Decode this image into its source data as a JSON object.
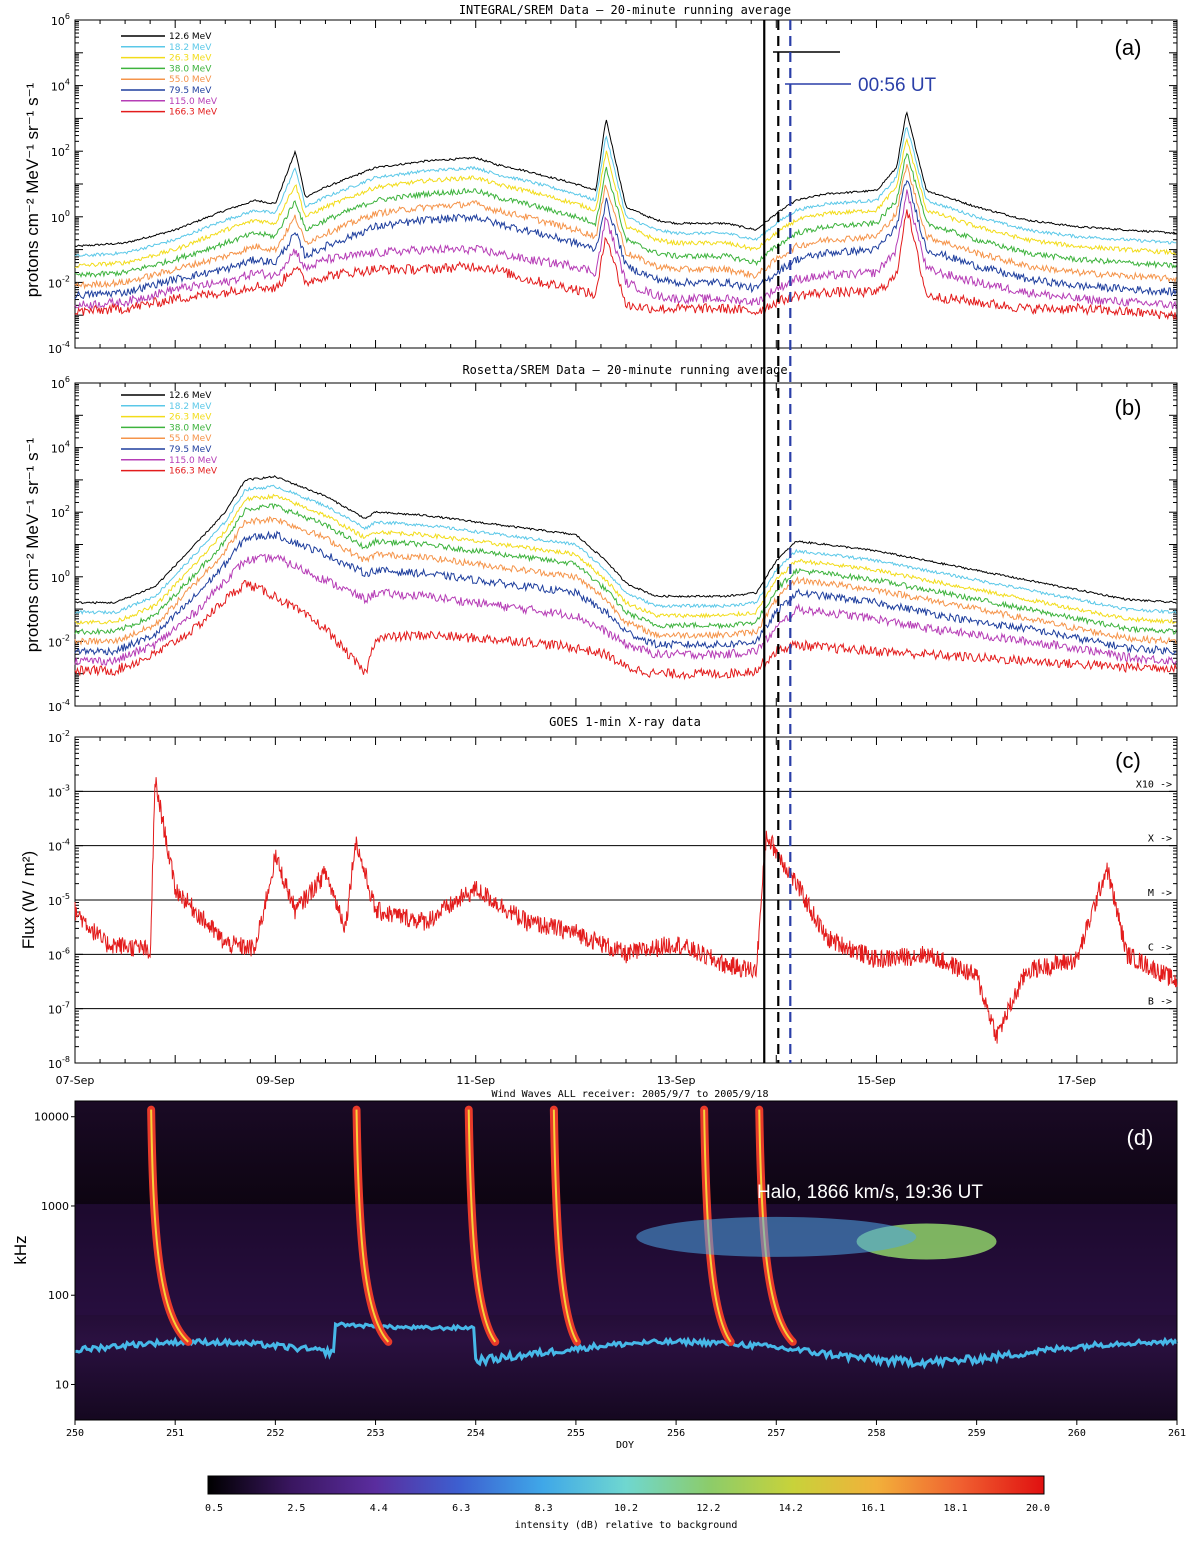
{
  "colors": {
    "series": [
      "#000000",
      "#5bc8e8",
      "#f2dc1a",
      "#3db33d",
      "#f5944a",
      "#1f3f9e",
      "#b63db6",
      "#e31c1c"
    ],
    "goes": "#e31c1c",
    "blue_dash": "#2a3fa8"
  },
  "panel_a": {
    "title": "INTEGRAL/SREM Data – 20-minute running average",
    "label": "(a)",
    "ylabel": "protons cm⁻² MeV⁻¹ sr⁻¹ s⁻¹",
    "annotation": "00:56 UT"
  },
  "panel_b": {
    "title": "Rosetta/SREM Data – 20-minute running average",
    "label": "(b)",
    "ylabel": "protons cm⁻² MeV⁻¹ sr⁻¹ s⁻¹"
  },
  "panel_c": {
    "title": "GOES 1-min X-ray data",
    "label": "(c)",
    "ylabel": "Flux (W / m²)",
    "class_labels": [
      "X10 ->",
      "X ->",
      "M ->",
      "C ->",
      "B ->"
    ],
    "class_levels": [
      -3,
      -4,
      -5,
      -6,
      -7
    ]
  },
  "panel_d": {
    "title": "Wind Waves ALL receiver: 2005/9/7 to 2005/9/18",
    "label": "(d)",
    "ylabel": "kHz",
    "xlabel": "DOY",
    "annotation": "Halo, 1866 km/s, 19:36 UT",
    "colorbar_label": "intensity (dB) relative to background",
    "colorbar_ticks": [
      "0.5",
      "2.5",
      "4.4",
      "6.3",
      "8.3",
      "10.2",
      "12.2",
      "14.2",
      "16.1",
      "18.1",
      "20.0"
    ]
  },
  "legend": [
    "12.6 MeV",
    "18.2 MeV",
    "26.3 MeV",
    "38.0 MeV",
    "55.0 MeV",
    "79.5 MeV",
    "115.0 MeV",
    "166.3 MeV"
  ],
  "date_ticks": [
    "07-Sep",
    "09-Sep",
    "11-Sep",
    "13-Sep",
    "15-Sep",
    "17-Sep"
  ],
  "doy_ticks": [
    "250",
    "251",
    "252",
    "253",
    "254",
    "255",
    "256",
    "257",
    "258",
    "259",
    "260",
    "261"
  ],
  "freq_ticks": [
    "10000",
    "1000",
    "100",
    "10"
  ],
  "event_lines": {
    "solid_black_doy": 256.88,
    "dashed_black_doy": 257.02,
    "dashed_blue_doy": 257.14
  },
  "chart_data": [
    {
      "type": "line",
      "title": "INTEGRAL/SREM Data – 20-minute running average",
      "ylabel": "protons cm-2 MeV-1 sr-1 s-1",
      "yscale": "log",
      "ylim": [
        -4,
        6
      ],
      "xlim": [
        250,
        261
      ],
      "x": [
        250.0,
        250.5,
        251.0,
        251.5,
        251.8,
        252.0,
        252.2,
        252.3,
        252.5,
        253.0,
        253.5,
        254.0,
        254.2,
        254.5,
        255.0,
        255.2,
        255.3,
        255.5,
        255.8,
        256.0,
        256.5,
        256.8,
        257.0,
        257.2,
        257.5,
        258.0,
        258.2,
        258.3,
        258.5,
        259.0,
        259.5,
        260.0,
        260.5,
        261.0
      ],
      "series": [
        {
          "name": "12.6 MeV",
          "values": [
            -0.9,
            -0.8,
            -0.4,
            0.2,
            0.5,
            0.4,
            2.0,
            0.6,
            0.9,
            1.5,
            1.7,
            1.8,
            1.6,
            1.4,
            1.0,
            0.8,
            3.0,
            0.3,
            -0.1,
            -0.2,
            -0.2,
            -0.4,
            0.1,
            0.5,
            0.7,
            0.8,
            1.5,
            3.2,
            0.8,
            0.3,
            -0.1,
            -0.3,
            -0.4,
            -0.5
          ]
        },
        {
          "name": "18.2 MeV",
          "values": [
            -1.2,
            -1.1,
            -0.7,
            -0.1,
            0.2,
            0.1,
            1.5,
            0.3,
            0.6,
            1.2,
            1.4,
            1.5,
            1.3,
            1.1,
            0.7,
            0.5,
            2.5,
            0.0,
            -0.4,
            -0.5,
            -0.5,
            -0.7,
            -0.2,
            0.2,
            0.4,
            0.5,
            1.2,
            2.8,
            0.5,
            0.0,
            -0.4,
            -0.6,
            -0.7,
            -0.8
          ]
        },
        {
          "name": "26.3 MeV",
          "values": [
            -1.5,
            -1.4,
            -1.0,
            -0.4,
            -0.1,
            -0.2,
            1.0,
            0.0,
            0.3,
            0.9,
            1.1,
            1.2,
            1.0,
            0.8,
            0.4,
            0.2,
            2.0,
            -0.3,
            -0.7,
            -0.8,
            -0.8,
            -1.0,
            -0.5,
            -0.1,
            0.1,
            0.2,
            0.9,
            2.4,
            0.2,
            -0.3,
            -0.7,
            -0.9,
            -1.0,
            -1.1
          ]
        },
        {
          "name": "38.0 MeV",
          "values": [
            -1.8,
            -1.7,
            -1.3,
            -0.8,
            -0.5,
            -0.6,
            0.5,
            -0.4,
            -0.1,
            0.5,
            0.7,
            0.8,
            0.6,
            0.4,
            0.0,
            -0.2,
            1.5,
            -0.7,
            -1.1,
            -1.2,
            -1.2,
            -1.4,
            -0.9,
            -0.5,
            -0.3,
            -0.2,
            0.5,
            2.0,
            -0.2,
            -0.7,
            -1.1,
            -1.3,
            -1.4,
            -1.5
          ]
        },
        {
          "name": "55.0 MeV",
          "values": [
            -2.1,
            -2.0,
            -1.6,
            -1.2,
            -0.9,
            -1.0,
            0.0,
            -0.8,
            -0.5,
            0.1,
            0.3,
            0.4,
            0.2,
            0.0,
            -0.4,
            -0.6,
            1.0,
            -1.1,
            -1.5,
            -1.6,
            -1.6,
            -1.8,
            -1.3,
            -0.9,
            -0.7,
            -0.6,
            0.1,
            1.6,
            -0.6,
            -1.1,
            -1.5,
            -1.7,
            -1.8,
            -1.9
          ]
        },
        {
          "name": "79.5 MeV",
          "values": [
            -2.4,
            -2.3,
            -1.9,
            -1.6,
            -1.3,
            -1.4,
            -0.5,
            -1.2,
            -0.9,
            -0.3,
            -0.1,
            0.0,
            -0.2,
            -0.4,
            -0.8,
            -1.0,
            0.5,
            -1.5,
            -1.9,
            -2.0,
            -2.0,
            -2.2,
            -1.7,
            -1.3,
            -1.1,
            -1.0,
            -0.3,
            1.2,
            -1.0,
            -1.5,
            -1.9,
            -2.1,
            -2.2,
            -2.3
          ]
        },
        {
          "name": "115.0 MeV",
          "values": [
            -2.7,
            -2.6,
            -2.2,
            -2.0,
            -1.7,
            -1.8,
            -1.0,
            -1.6,
            -1.3,
            -1.1,
            -1.0,
            -1.0,
            -1.1,
            -1.3,
            -1.5,
            -1.7,
            0.0,
            -2.0,
            -2.4,
            -2.5,
            -2.5,
            -2.6,
            -2.2,
            -1.9,
            -1.8,
            -1.7,
            -1.0,
            0.8,
            -1.6,
            -2.0,
            -2.3,
            -2.5,
            -2.6,
            -2.7
          ]
        },
        {
          "name": "166.3 MeV",
          "values": [
            -2.9,
            -2.8,
            -2.5,
            -2.3,
            -2.1,
            -2.2,
            -1.5,
            -2.0,
            -1.8,
            -1.6,
            -1.6,
            -1.5,
            -1.6,
            -1.9,
            -2.2,
            -2.4,
            -0.5,
            -2.7,
            -2.8,
            -2.8,
            -2.8,
            -2.9,
            -2.6,
            -2.4,
            -2.3,
            -2.3,
            -1.8,
            0.3,
            -2.4,
            -2.6,
            -2.8,
            -2.8,
            -2.9,
            -3.0
          ]
        }
      ]
    },
    {
      "type": "line",
      "title": "Rosetta/SREM Data – 20-minute running average",
      "ylabel": "protons cm-2 MeV-1 sr-1 s-1",
      "yscale": "log",
      "ylim": [
        -4,
        6
      ],
      "xlim": [
        250,
        261
      ],
      "x": [
        250.0,
        250.4,
        250.8,
        251.2,
        251.5,
        251.7,
        252.0,
        252.5,
        252.9,
        253.0,
        253.5,
        254.0,
        254.5,
        255.0,
        255.3,
        255.5,
        255.8,
        256.0,
        256.5,
        256.8,
        257.0,
        257.2,
        257.5,
        258.0,
        258.5,
        259.0,
        259.5,
        260.0,
        260.5,
        261.0
      ],
      "series": [
        {
          "name": "12.6 MeV",
          "values": [
            -0.8,
            -0.8,
            -0.3,
            1.0,
            2.0,
            3.0,
            3.1,
            2.5,
            1.8,
            2.0,
            1.9,
            1.7,
            1.5,
            1.3,
            0.5,
            -0.2,
            -0.6,
            -0.6,
            -0.6,
            -0.5,
            0.5,
            1.1,
            1.0,
            0.8,
            0.5,
            0.2,
            -0.1,
            -0.4,
            -0.7,
            -0.8
          ]
        },
        {
          "name": "18.2 MeV",
          "values": [
            -1.1,
            -1.1,
            -0.6,
            0.7,
            1.7,
            2.7,
            2.8,
            2.2,
            1.5,
            1.7,
            1.6,
            1.4,
            1.2,
            1.0,
            0.2,
            -0.5,
            -0.9,
            -0.9,
            -0.9,
            -0.8,
            0.2,
            0.8,
            0.7,
            0.5,
            0.2,
            -0.1,
            -0.4,
            -0.7,
            -1.0,
            -1.1
          ]
        },
        {
          "name": "26.3 MeV",
          "values": [
            -1.4,
            -1.4,
            -0.9,
            0.4,
            1.4,
            2.4,
            2.5,
            1.9,
            1.2,
            1.4,
            1.3,
            1.1,
            0.9,
            0.7,
            -0.1,
            -0.8,
            -1.2,
            -1.2,
            -1.2,
            -1.1,
            -0.1,
            0.5,
            0.4,
            0.2,
            -0.1,
            -0.4,
            -0.7,
            -1.0,
            -1.3,
            -1.4
          ]
        },
        {
          "name": "38.0 MeV",
          "values": [
            -1.7,
            -1.7,
            -1.2,
            0.1,
            1.1,
            2.1,
            2.2,
            1.6,
            0.9,
            1.1,
            1.0,
            0.8,
            0.6,
            0.4,
            -0.4,
            -1.1,
            -1.5,
            -1.5,
            -1.5,
            -1.4,
            -0.4,
            0.2,
            0.1,
            -0.1,
            -0.4,
            -0.7,
            -1.0,
            -1.3,
            -1.6,
            -1.7
          ]
        },
        {
          "name": "55.0 MeV",
          "values": [
            -2.0,
            -2.0,
            -1.5,
            -0.2,
            0.8,
            1.7,
            1.8,
            1.2,
            0.5,
            0.7,
            0.6,
            0.4,
            0.2,
            0.0,
            -0.7,
            -1.4,
            -1.8,
            -1.8,
            -1.8,
            -1.7,
            -0.7,
            -0.1,
            -0.2,
            -0.4,
            -0.7,
            -1.0,
            -1.3,
            -1.6,
            -1.9,
            -2.0
          ]
        },
        {
          "name": "79.5 MeV",
          "values": [
            -2.3,
            -2.3,
            -1.8,
            -0.6,
            0.4,
            1.2,
            1.3,
            0.7,
            0.1,
            0.2,
            0.1,
            -0.1,
            -0.3,
            -0.5,
            -1.1,
            -1.7,
            -2.1,
            -2.1,
            -2.1,
            -2.0,
            -1.1,
            -0.5,
            -0.6,
            -0.8,
            -1.1,
            -1.4,
            -1.6,
            -1.9,
            -2.2,
            -2.3
          ]
        },
        {
          "name": "115.0 MeV",
          "values": [
            -2.6,
            -2.6,
            -2.1,
            -1.1,
            -0.1,
            0.5,
            0.6,
            -0.1,
            -0.7,
            -0.5,
            -0.6,
            -0.8,
            -1.0,
            -1.2,
            -1.7,
            -2.1,
            -2.4,
            -2.4,
            -2.4,
            -2.3,
            -1.6,
            -1.0,
            -1.1,
            -1.3,
            -1.6,
            -1.8,
            -2.0,
            -2.2,
            -2.5,
            -2.6
          ]
        },
        {
          "name": "166.3 MeV",
          "values": [
            -2.9,
            -2.9,
            -2.4,
            -1.6,
            -0.7,
            -0.2,
            -0.6,
            -1.6,
            -3.0,
            -1.9,
            -1.8,
            -1.9,
            -2.0,
            -2.2,
            -2.4,
            -2.8,
            -3.0,
            -3.0,
            -3.0,
            -2.9,
            -2.3,
            -2.1,
            -2.2,
            -2.3,
            -2.4,
            -2.5,
            -2.6,
            -2.7,
            -2.8,
            -2.8
          ]
        }
      ]
    },
    {
      "type": "line",
      "title": "GOES 1-min X-ray data",
      "ylabel": "Flux (W / m2)",
      "yscale": "log",
      "ylim": [
        -8,
        -2
      ],
      "xlim": [
        250,
        261
      ],
      "x": [
        250.0,
        250.3,
        250.7,
        250.75,
        250.8,
        251.0,
        251.5,
        251.8,
        252.0,
        252.2,
        252.5,
        252.7,
        252.8,
        253.0,
        253.5,
        254.0,
        254.5,
        255.0,
        255.5,
        256.0,
        256.5,
        256.8,
        256.9,
        257.2,
        257.5,
        258.0,
        258.5,
        259.0,
        259.2,
        259.5,
        260.0,
        260.3,
        260.5,
        261.0
      ],
      "series": [
        {
          "name": "",
          "values": [
            -5.2,
            -5.8,
            -5.9,
            -6.1,
            -2.8,
            -4.8,
            -5.8,
            -5.9,
            -4.2,
            -5.2,
            -4.5,
            -5.5,
            -3.9,
            -5.2,
            -5.4,
            -4.8,
            -5.4,
            -5.6,
            -6.0,
            -5.8,
            -6.2,
            -6.3,
            -3.8,
            -4.7,
            -5.7,
            -6.1,
            -6.0,
            -6.4,
            -7.5,
            -6.3,
            -6.1,
            -4.4,
            -6.0,
            -6.5
          ]
        }
      ]
    }
  ]
}
